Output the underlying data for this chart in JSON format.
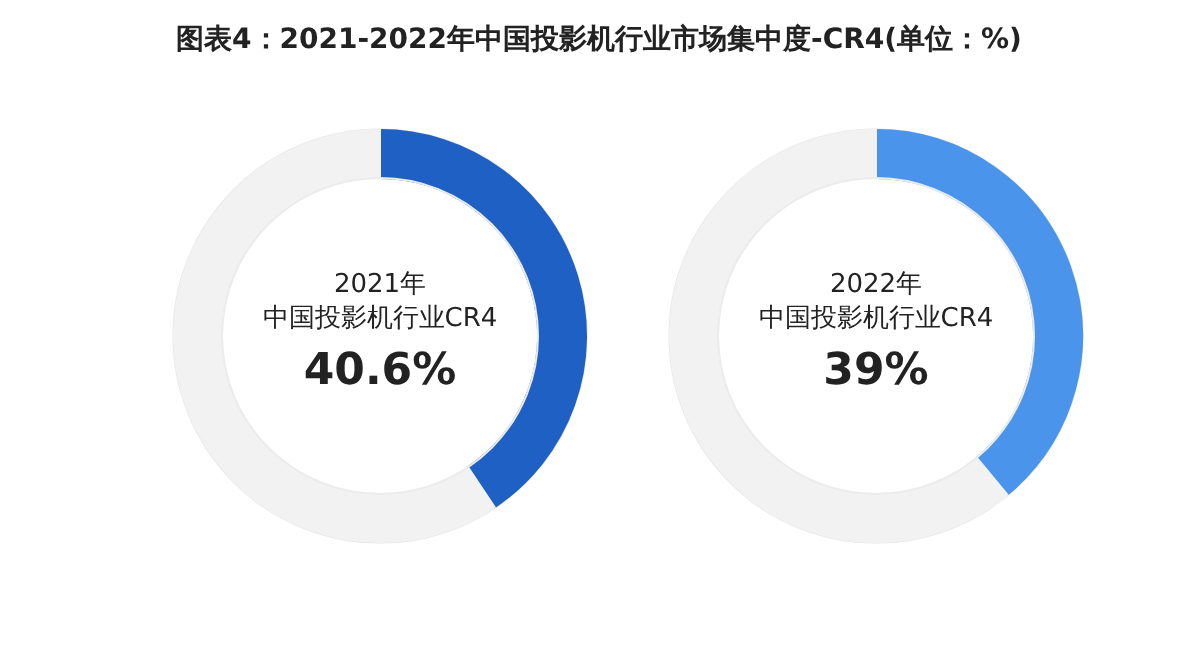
{
  "chart_data": [
    {
      "type": "donut",
      "title": "图表4：2021-2022年中国投影机行业市场集中度-CR4(单位：%)",
      "annotations": [
        "2021年",
        "中国投影机行业CR4",
        "40.6%"
      ],
      "categories": [
        null,
        null
      ],
      "values": [
        40.6,
        59.4
      ],
      "colors": [
        "#1f60c4",
        "#f2f2f2"
      ]
    },
    {
      "type": "donut",
      "annotations": [
        "2022年",
        "中国投影机行业CR4",
        "39%"
      ],
      "categories": [
        null,
        null
      ],
      "values": [
        39,
        61
      ],
      "colors": [
        "#4a94ec",
        "#f2f2f2"
      ]
    }
  ]
}
